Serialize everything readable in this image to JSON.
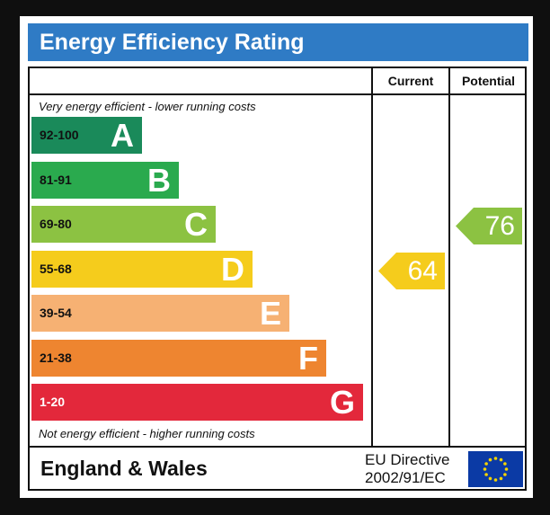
{
  "title": "Energy Efficiency Rating",
  "columns": {
    "current": "Current",
    "potential": "Potential"
  },
  "notes": {
    "top": "Very energy efficient - lower running costs",
    "bottom": "Not energy efficient - higher running costs"
  },
  "bands": [
    {
      "range": "92-100",
      "letter": "A",
      "color": "#1a8a5a",
      "range_color": "#111111"
    },
    {
      "range": "81-91",
      "letter": "B",
      "color": "#2aaa4e",
      "range_color": "#111111"
    },
    {
      "range": "69-80",
      "letter": "C",
      "color": "#8cc242",
      "range_color": "#111111"
    },
    {
      "range": "55-68",
      "letter": "D",
      "color": "#f5cc1c",
      "range_color": "#111111"
    },
    {
      "range": "39-54",
      "letter": "E",
      "color": "#f6b173",
      "range_color": "#111111"
    },
    {
      "range": "21-38",
      "letter": "F",
      "color": "#ee8530",
      "range_color": "#111111"
    },
    {
      "range": "1-20",
      "letter": "G",
      "color": "#e3283b",
      "range_color": "#ffffff"
    }
  ],
  "ratings": {
    "current": {
      "value": "64",
      "band": "D",
      "color": "#f5cc1c"
    },
    "potential": {
      "value": "76",
      "band": "C",
      "color": "#8cc242"
    }
  },
  "footer": {
    "region": "England & Wales",
    "directive_line1": "EU Directive",
    "directive_line2": "2002/91/EC"
  },
  "icons": {
    "flag": "eu-flag-icon"
  },
  "colors": {
    "header": "#2f7bc5",
    "eu_blue": "#0b3aa5",
    "eu_star": "#f5d400"
  }
}
